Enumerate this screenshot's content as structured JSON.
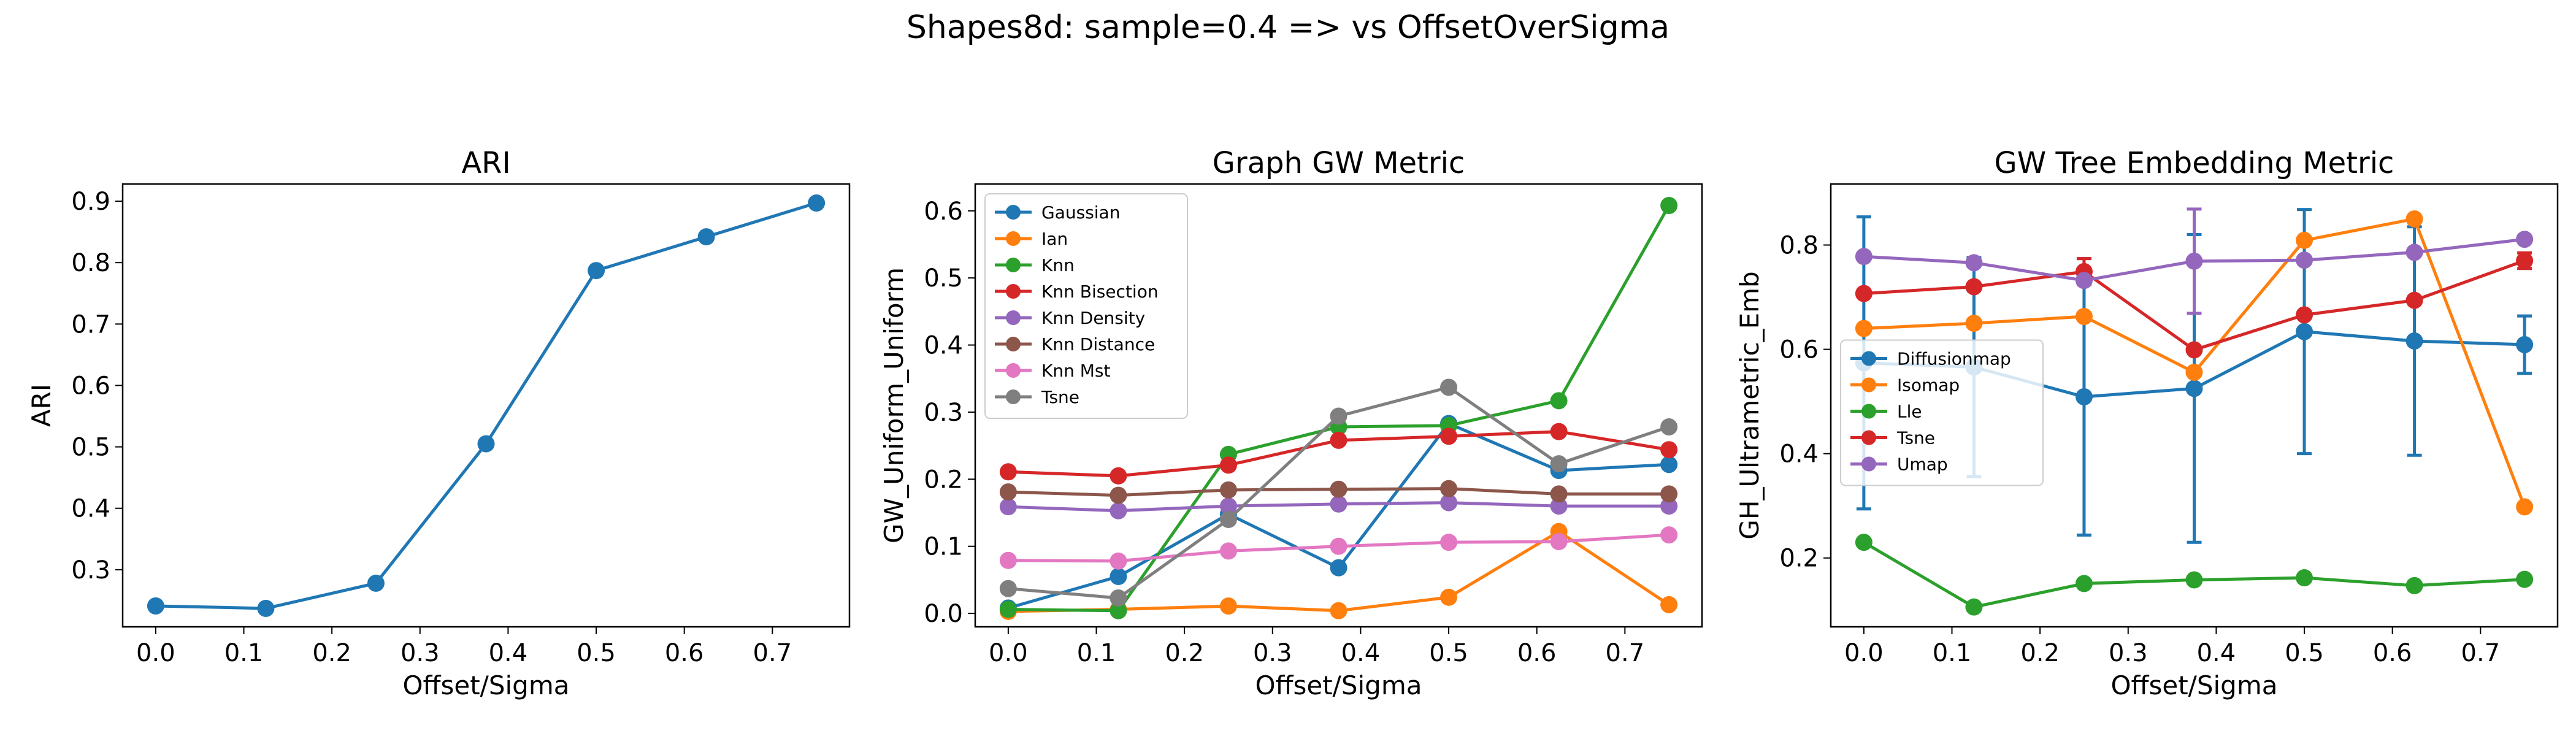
{
  "figure": {
    "suptitle": "Shapes8d: sample=0.4 => vs OffsetOverSigma"
  },
  "chart_data": [
    {
      "type": "line",
      "title": "ARI",
      "xlabel": "Offset/Sigma",
      "ylabel": "ARI",
      "xlim": [
        -0.0375,
        0.7875
      ],
      "ylim": [
        0.207,
        0.928
      ],
      "xticks": [
        0.0,
        0.1,
        0.2,
        0.3,
        0.4,
        0.5,
        0.6,
        0.7
      ],
      "yticks": [
        0.3,
        0.4,
        0.5,
        0.6,
        0.7,
        0.8,
        0.9
      ],
      "x": [
        0.0,
        0.125,
        0.25,
        0.375,
        0.5,
        0.625,
        0.75
      ],
      "legend": "none",
      "series": [
        {
          "values": [
            0.241,
            0.237,
            0.278,
            0.505,
            0.787,
            0.842,
            0.897
          ],
          "color": "#1f77b4"
        }
      ]
    },
    {
      "type": "line",
      "title": "Graph GW Metric",
      "xlabel": "Offset/Sigma",
      "ylabel": "GW_Uniform_Uniform",
      "xlim": [
        -0.0375,
        0.7875
      ],
      "ylim": [
        -0.02,
        0.64
      ],
      "xticks": [
        0.0,
        0.1,
        0.2,
        0.3,
        0.4,
        0.5,
        0.6,
        0.7
      ],
      "yticks": [
        0.0,
        0.1,
        0.2,
        0.3,
        0.4,
        0.5,
        0.6
      ],
      "x": [
        0.0,
        0.125,
        0.25,
        0.375,
        0.5,
        0.625,
        0.75
      ],
      "legend": "top-left",
      "series": [
        {
          "name": "Gaussian",
          "color": "#1f77b4",
          "values": [
            0.008,
            0.055,
            0.148,
            0.068,
            0.283,
            0.213,
            0.222
          ]
        },
        {
          "name": "Ian",
          "color": "#ff7f0e",
          "values": [
            0.003,
            0.006,
            0.011,
            0.004,
            0.024,
            0.122,
            0.013
          ]
        },
        {
          "name": "Knn",
          "color": "#2ca02c",
          "values": [
            0.006,
            0.004,
            0.237,
            0.278,
            0.28,
            0.317,
            0.608
          ]
        },
        {
          "name": "Knn Bisection",
          "color": "#d62728",
          "values": [
            0.211,
            0.205,
            0.221,
            0.258,
            0.264,
            0.271,
            0.244
          ]
        },
        {
          "name": "Knn Density",
          "color": "#9467bd",
          "values": [
            0.159,
            0.153,
            0.16,
            0.163,
            0.165,
            0.16,
            0.16
          ]
        },
        {
          "name": "Knn Distance",
          "color": "#8c564b",
          "values": [
            0.181,
            0.176,
            0.184,
            0.185,
            0.186,
            0.178,
            0.178
          ]
        },
        {
          "name": "Knn Mst",
          "color": "#e377c2",
          "values": [
            0.079,
            0.078,
            0.093,
            0.1,
            0.106,
            0.107,
            0.117
          ]
        },
        {
          "name": "Tsne",
          "color": "#7f7f7f",
          "values": [
            0.037,
            0.023,
            0.14,
            0.294,
            0.337,
            0.223,
            0.278
          ]
        }
      ]
    },
    {
      "type": "line",
      "title": "GW Tree Embedding Metric",
      "xlabel": "Offset/Sigma",
      "ylabel": "GH_Ultrametric_Emb",
      "xlim": [
        -0.0375,
        0.7875
      ],
      "ylim": [
        0.068,
        0.917
      ],
      "xticks": [
        0.0,
        0.1,
        0.2,
        0.3,
        0.4,
        0.5,
        0.6,
        0.7
      ],
      "yticks": [
        0.2,
        0.4,
        0.6,
        0.8
      ],
      "x": [
        0.0,
        0.125,
        0.25,
        0.375,
        0.5,
        0.625,
        0.75
      ],
      "legend": "center-left",
      "series": [
        {
          "name": "Diffusionmap",
          "color": "#1f77b4",
          "values": [
            0.574,
            0.566,
            0.509,
            0.525,
            0.634,
            0.616,
            0.609
          ],
          "errors": [
            0.28,
            0.21,
            0.265,
            0.295,
            0.234,
            0.219,
            0.055
          ]
        },
        {
          "name": "Isomap",
          "color": "#ff7f0e",
          "values": [
            0.64,
            0.65,
            0.663,
            0.556,
            0.809,
            0.85,
            0.298
          ],
          "errors": [
            0.0,
            0.0,
            0.0,
            0.0,
            0.0,
            0.0,
            0.0
          ]
        },
        {
          "name": "Lle",
          "color": "#2ca02c",
          "values": [
            0.23,
            0.106,
            0.151,
            0.158,
            0.162,
            0.147,
            0.159
          ],
          "errors": [
            0.0,
            0.0,
            0.0,
            0.0,
            0.0,
            0.0,
            0.0
          ]
        },
        {
          "name": "Tsne",
          "color": "#d62728",
          "values": [
            0.707,
            0.72,
            0.749,
            0.599,
            0.666,
            0.694,
            0.77
          ],
          "errors": [
            0.0,
            0.0,
            0.025,
            0.0,
            0.0,
            0.0,
            0.015
          ]
        },
        {
          "name": "Umap",
          "color": "#9467bd",
          "values": [
            0.778,
            0.766,
            0.732,
            0.769,
            0.771,
            0.786,
            0.811
          ],
          "errors": [
            0.0,
            0.0,
            0.0,
            0.1,
            0.0,
            0.0,
            0.0
          ]
        }
      ]
    }
  ]
}
